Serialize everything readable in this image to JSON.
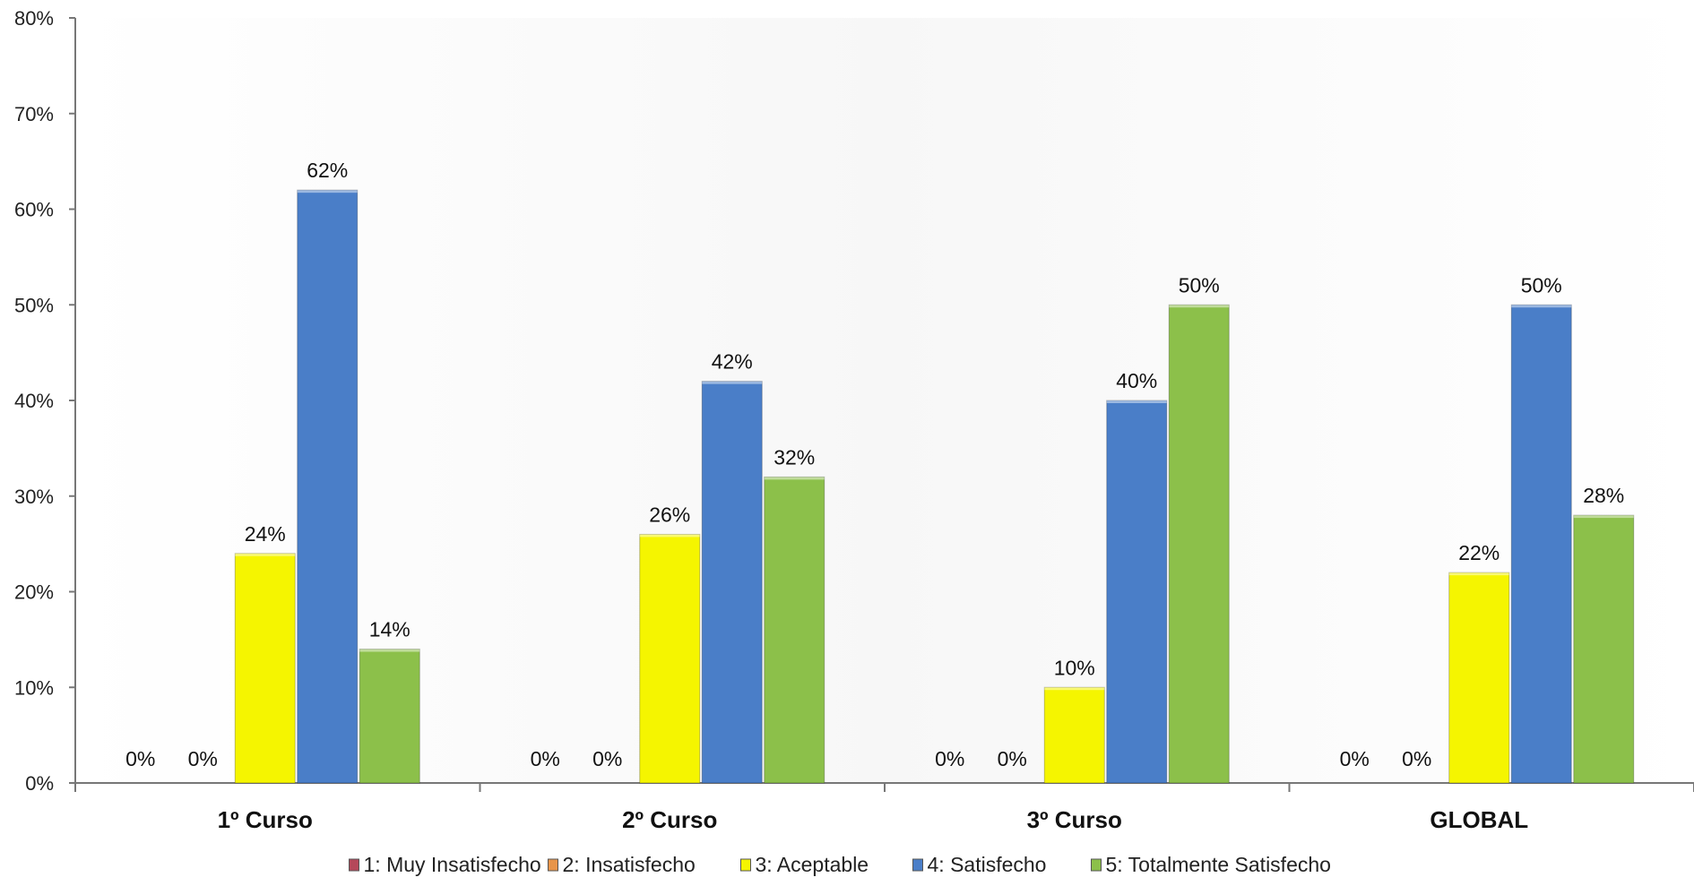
{
  "chart_data": {
    "type": "bar",
    "title": "",
    "xlabel": "",
    "ylabel": "",
    "categories": [
      "1º Curso",
      "2º Curso",
      "3º Curso",
      "GLOBAL"
    ],
    "yticks": [
      "0%",
      "10%",
      "20%",
      "30%",
      "40%",
      "50%",
      "60%",
      "70%",
      "80%"
    ],
    "ylim": [
      0,
      80
    ],
    "grid": false,
    "legend_position": "bottom",
    "series": [
      {
        "name": "1: Muy Insatisfecho",
        "color": "#b5485a",
        "values": [
          0,
          0,
          0,
          0
        ],
        "labels": [
          "0%",
          "0%",
          "0%",
          "0%"
        ]
      },
      {
        "name": "2: Insatisfecho",
        "color": "#e8954a",
        "values": [
          0,
          0,
          0,
          0
        ],
        "labels": [
          "0%",
          "0%",
          "0%",
          "0%"
        ]
      },
      {
        "name": "3: Aceptable",
        "color": "#f5f500",
        "values": [
          24,
          26,
          10,
          22
        ],
        "labels": [
          "24%",
          "26%",
          "10%",
          "22%"
        ]
      },
      {
        "name": "4: Satisfecho",
        "color": "#4a7ec8",
        "values": [
          62,
          42,
          40,
          50
        ],
        "labels": [
          "62%",
          "42%",
          "40%",
          "50%"
        ]
      },
      {
        "name": "5: Totalmente Satisfecho",
        "color": "#8cc04a",
        "values": [
          14,
          32,
          50,
          28
        ],
        "labels": [
          "14%",
          "32%",
          "50%",
          "28%"
        ]
      }
    ]
  }
}
